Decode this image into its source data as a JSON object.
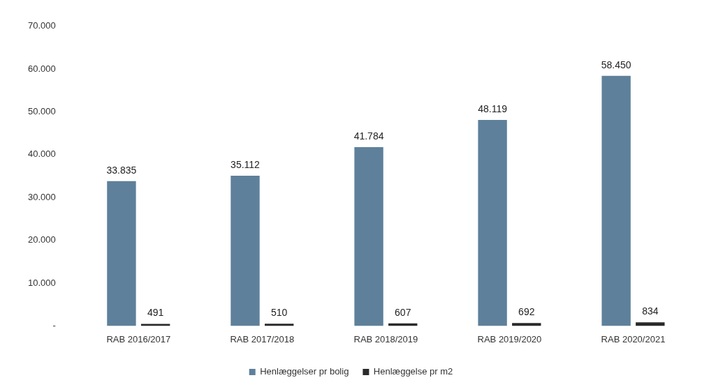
{
  "chart_data": {
    "type": "bar",
    "categories": [
      "RAB 2016/2017",
      "RAB 2017/2018",
      "RAB 2018/2019",
      "RAB 2019/2020",
      "RAB 2020/2021"
    ],
    "series": [
      {
        "name": "Henlæggelser pr bolig",
        "color": "#5e809a",
        "values": [
          33835,
          35112,
          41784,
          48119,
          58450
        ],
        "value_labels": [
          "33.835",
          "35.112",
          "41.784",
          "48.119",
          "58.450"
        ]
      },
      {
        "name": "Henlæggelse pr m2",
        "color": "#2a2a2a",
        "values": [
          491,
          510,
          607,
          692,
          834
        ],
        "value_labels": [
          "491",
          "510",
          "607",
          "692",
          "834"
        ]
      }
    ],
    "ylim": [
      0,
      70000
    ],
    "yticks": [
      {
        "value": 0,
        "label": "-"
      },
      {
        "value": 10000,
        "label": "10.000"
      },
      {
        "value": 20000,
        "label": "20.000"
      },
      {
        "value": 30000,
        "label": "30.000"
      },
      {
        "value": 40000,
        "label": "40.000"
      },
      {
        "value": 50000,
        "label": "50.000"
      },
      {
        "value": 60000,
        "label": "60.000"
      },
      {
        "value": 70000,
        "label": "70.000"
      }
    ],
    "grid": false,
    "legend": "bottom"
  }
}
